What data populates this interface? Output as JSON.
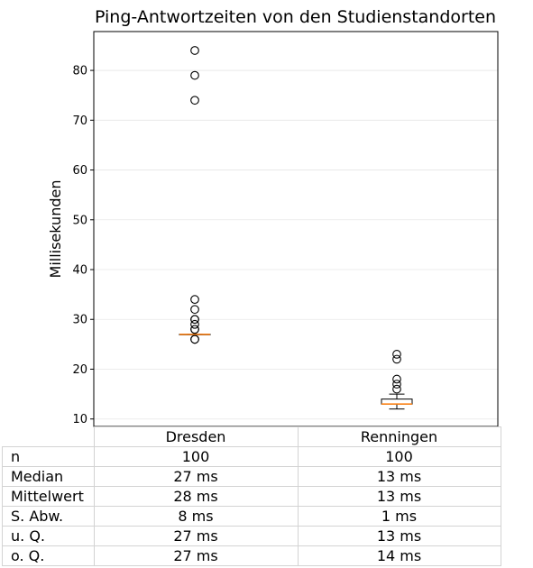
{
  "chart_data": {
    "type": "box",
    "title": "Ping-Antwortzeiten von den Studienstandorten",
    "xlabel": "",
    "ylabel": "Millisekunden",
    "ylim": [
      8.5,
      87.8
    ],
    "yticks": [
      10,
      20,
      30,
      40,
      50,
      60,
      70,
      80
    ],
    "grid": "horizontal",
    "categories": [
      "Dresden",
      "Renningen"
    ],
    "boxes": [
      {
        "category": "Dresden",
        "q1": 27,
        "median": 27,
        "q3": 27,
        "whisker_low": 27,
        "whisker_high": 27,
        "outliers": [
          84,
          79,
          74,
          34,
          32,
          30,
          30,
          29,
          28,
          28,
          26,
          26
        ]
      },
      {
        "category": "Renningen",
        "q1": 13,
        "median": 13,
        "q3": 14,
        "whisker_low": 12,
        "whisker_high": 15,
        "outliers": [
          23,
          22,
          18,
          17,
          16
        ]
      }
    ],
    "colors": {
      "median": "#ff7f0e",
      "box": "#000000",
      "grid": "#e6e6e6"
    }
  },
  "table": {
    "columns": [
      "Dresden",
      "Renningen"
    ],
    "rows": [
      {
        "label": "n",
        "values": [
          "100",
          "100"
        ]
      },
      {
        "label": "Median",
        "values": [
          "27 ms",
          "13 ms"
        ]
      },
      {
        "label": "Mittelwert",
        "values": [
          "28 ms",
          "13 ms"
        ]
      },
      {
        "label": "S. Abw.",
        "values": [
          "8 ms",
          "1 ms"
        ]
      },
      {
        "label": "u. Q.",
        "values": [
          "27 ms",
          "13 ms"
        ]
      },
      {
        "label": "o. Q.",
        "values": [
          "27 ms",
          "14 ms"
        ]
      }
    ]
  }
}
